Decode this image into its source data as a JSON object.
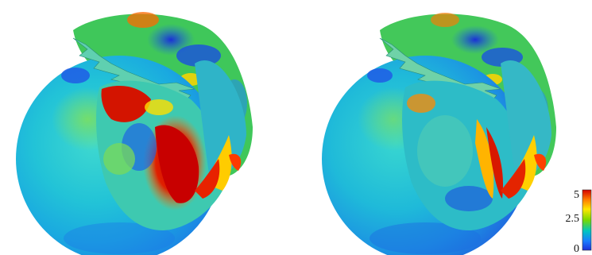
{
  "figure": {
    "panels": [
      {
        "id": "left",
        "palette": "high-stress"
      },
      {
        "id": "right",
        "palette": "low-stress"
      }
    ],
    "colorbar": {
      "labels": [
        "5",
        "2.5",
        "0"
      ],
      "colors": [
        "#d40000",
        "#ff7a00",
        "#ffe600",
        "#79d900",
        "#00c6c0",
        "#1a7cff",
        "#1d2fd8"
      ]
    }
  }
}
